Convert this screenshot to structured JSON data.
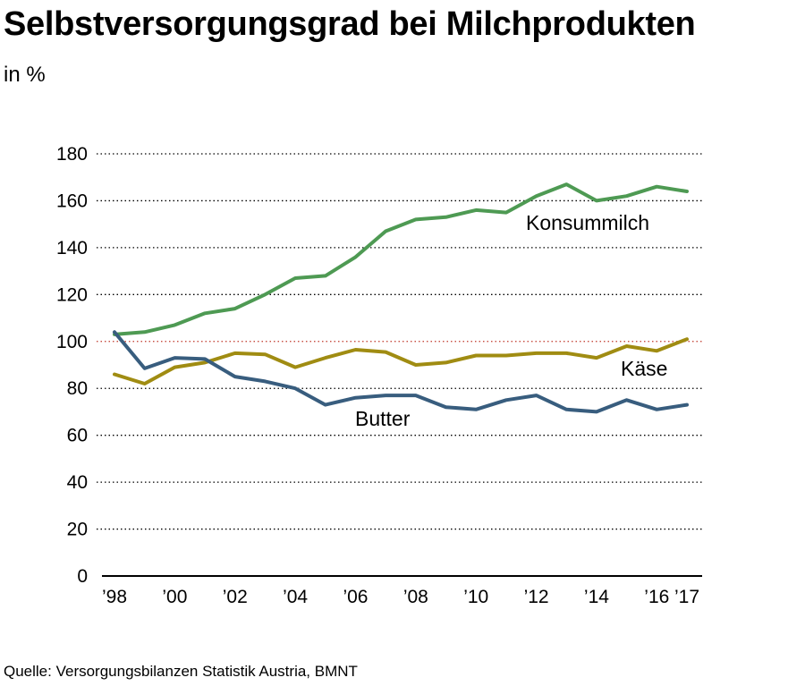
{
  "title": "Selbstversorgungsgrad bei Milchprodukten",
  "subtitle": "in %",
  "source": "Quelle: Versorgungsbilanzen Statistik Austria, BMNT",
  "colors": {
    "konsummilch": "#4e9a53",
    "kaese": "#a08c12",
    "butter": "#385d7e",
    "reference_line": "#c0392b",
    "grid": "#000000"
  },
  "chart_data": {
    "type": "line",
    "ylim": [
      0,
      180
    ],
    "yticks": [
      0,
      20,
      40,
      60,
      80,
      100,
      120,
      140,
      160,
      180
    ],
    "reference_line": 100,
    "grid": true,
    "x": [
      1998,
      1999,
      2000,
      2001,
      2002,
      2003,
      2004,
      2005,
      2006,
      2007,
      2008,
      2009,
      2010,
      2011,
      2012,
      2013,
      2014,
      2015,
      2016,
      2017
    ],
    "xtick_labels": [
      {
        "x": 1998,
        "label": "’98"
      },
      {
        "x": 2000,
        "label": "’00"
      },
      {
        "x": 2002,
        "label": "’02"
      },
      {
        "x": 2004,
        "label": "’04"
      },
      {
        "x": 2006,
        "label": "’06"
      },
      {
        "x": 2008,
        "label": "’08"
      },
      {
        "x": 2010,
        "label": "’10"
      },
      {
        "x": 2012,
        "label": "’12"
      },
      {
        "x": 2014,
        "label": "’14"
      },
      {
        "x": 2016,
        "label": "’16"
      },
      {
        "x": 2017,
        "label": "’17"
      }
    ],
    "series": [
      {
        "name": "Konsummilch",
        "color_key": "konsummilch",
        "values": [
          103,
          104,
          107,
          112,
          114,
          120,
          127,
          128,
          136,
          147,
          152,
          153,
          156,
          155,
          162,
          167,
          160,
          162,
          166,
          164
        ]
      },
      {
        "name": "Käse",
        "color_key": "kaese",
        "values": [
          86,
          82,
          89,
          91,
          95,
          94.5,
          89,
          93,
          96.5,
          95.5,
          90,
          91,
          94,
          94,
          95,
          95,
          93,
          98,
          96,
          101
        ]
      },
      {
        "name": "Butter",
        "color_key": "butter",
        "values": [
          104,
          88.5,
          93,
          92.5,
          85,
          83,
          80,
          73,
          76,
          77,
          77,
          72,
          71,
          75,
          77,
          71,
          70,
          75,
          71,
          73
        ]
      }
    ]
  }
}
